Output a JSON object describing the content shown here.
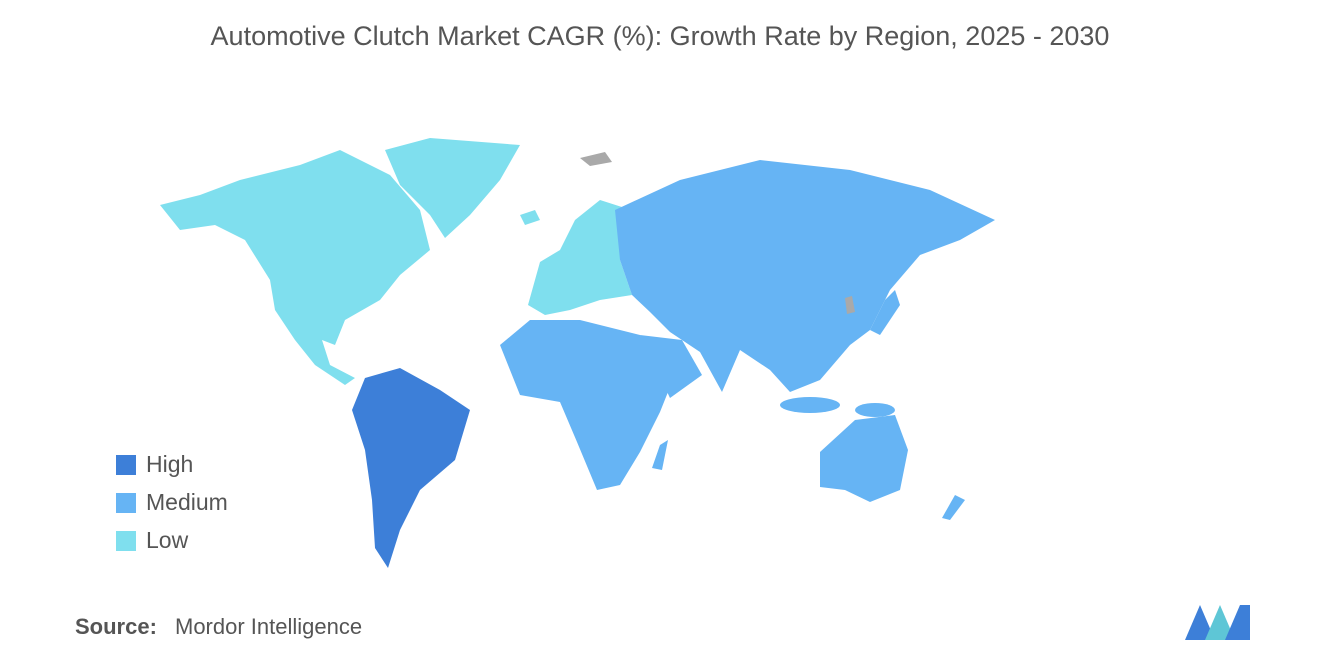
{
  "title": "Automotive Clutch Market CAGR (%): Growth Rate by Region, 2025 - 2030",
  "legend": [
    {
      "label": "High",
      "color": "#3d7fd8"
    },
    {
      "label": "Medium",
      "color": "#66b4f4"
    },
    {
      "label": "Low",
      "color": "#7fdfee"
    }
  ],
  "source": {
    "label": "Source:",
    "text": "Mordor Intelligence"
  }
}
